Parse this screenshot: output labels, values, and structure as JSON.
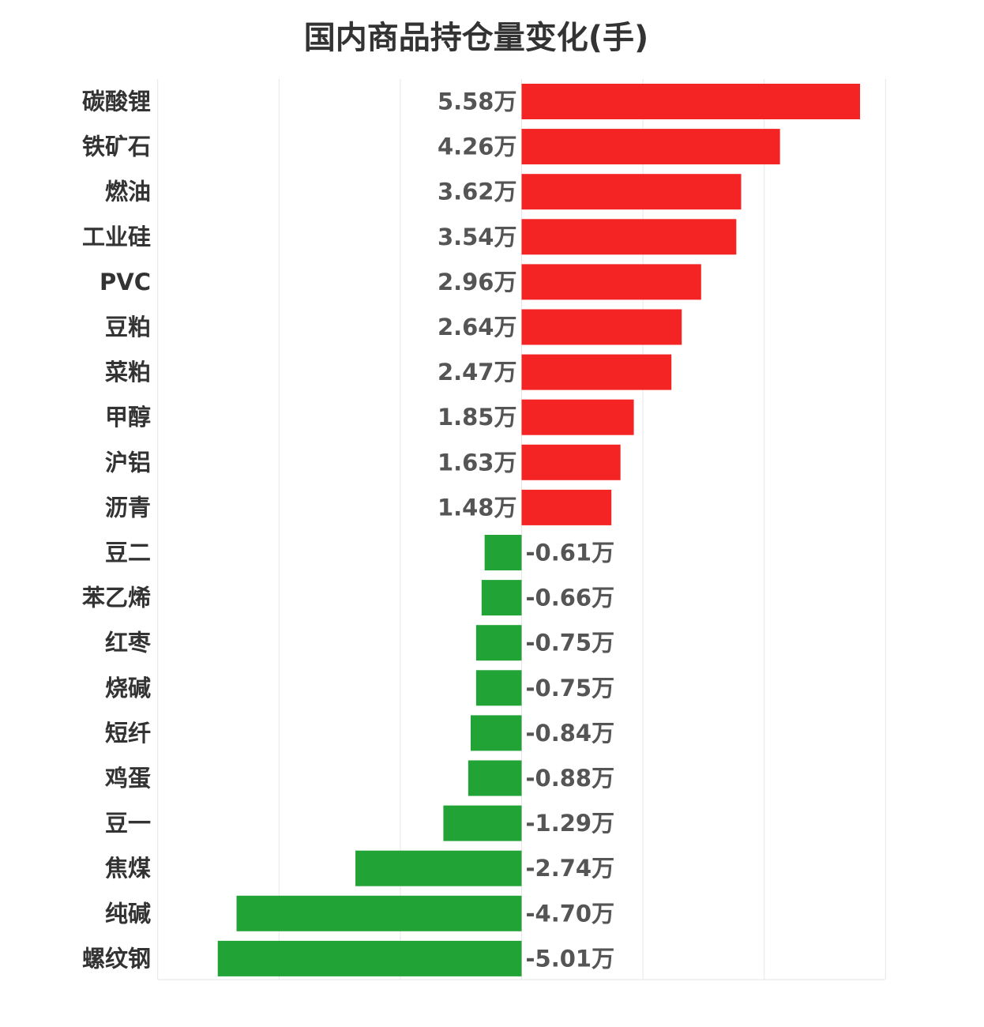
{
  "chart_data": {
    "type": "bar",
    "orientation": "horizontal",
    "title": "国内商品持仓量变化(手)",
    "categories": [
      "碳酸锂",
      "铁矿石",
      "燃油",
      "工业硅",
      "PVC",
      "豆粕",
      "菜粕",
      "甲醇",
      "沪铝",
      "沥青",
      "豆二",
      "苯乙烯",
      "红枣",
      "烧碱",
      "短纤",
      "鸡蛋",
      "豆一",
      "焦煤",
      "纯碱",
      "螺纹钢"
    ],
    "values": [
      5.58,
      4.26,
      3.62,
      3.54,
      2.96,
      2.64,
      2.47,
      1.85,
      1.63,
      1.48,
      -0.61,
      -0.66,
      -0.75,
      -0.75,
      -0.84,
      -0.88,
      -1.29,
      -2.74,
      -4.7,
      -5.01
    ],
    "value_labels": [
      "5.58万",
      "4.26万",
      "3.62万",
      "3.54万",
      "2.96万",
      "2.64万",
      "2.47万",
      "1.85万",
      "1.63万",
      "1.48万",
      "-0.61万",
      "-0.66万",
      "-0.75万",
      "-0.75万",
      "-0.84万",
      "-0.88万",
      "-1.29万",
      "-2.74万",
      "-4.70万",
      "-5.01万"
    ],
    "unit": "万",
    "xlim": [
      -6,
      6
    ],
    "grid": true,
    "colors": {
      "positive": "#f52424",
      "negative": "#21a336",
      "grid": "#e6e6e6",
      "category_text": "#333333",
      "value_text": "#555555"
    }
  }
}
